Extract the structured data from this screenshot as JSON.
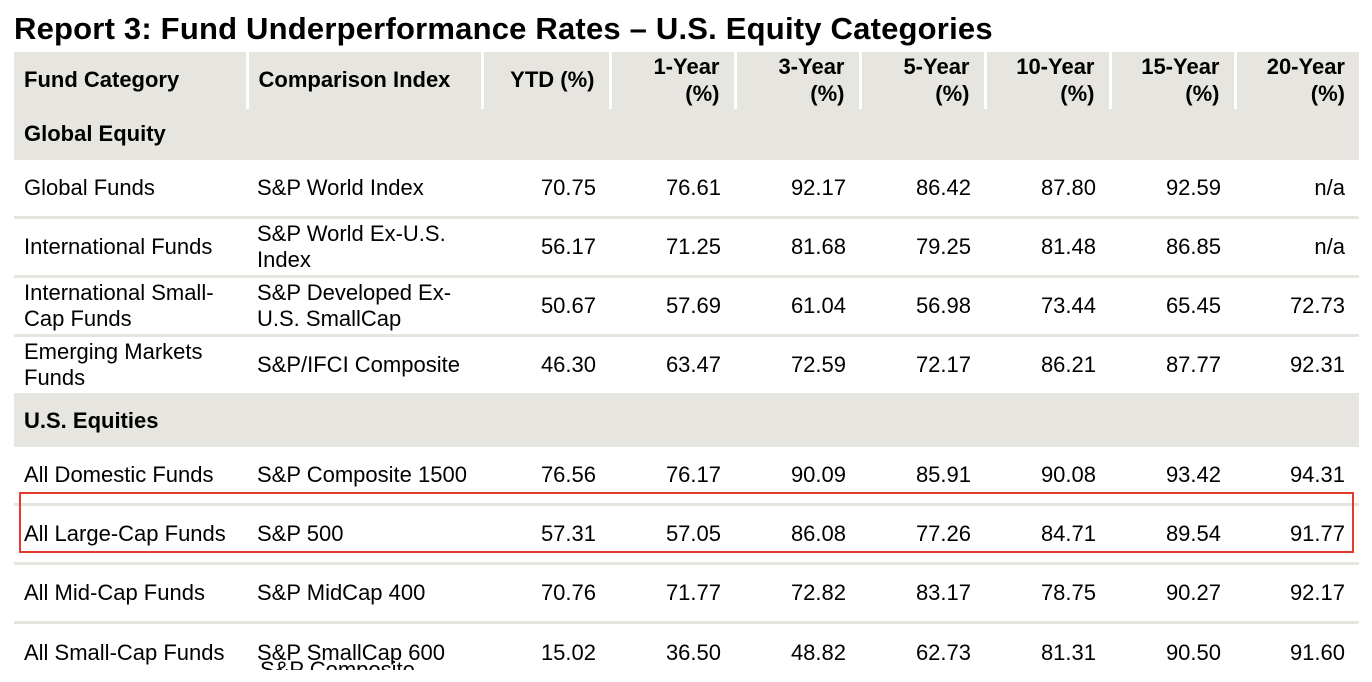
{
  "report": {
    "title": "Report 3: Fund Underperformance Rates – U.S. Equity Categories"
  },
  "table": {
    "columns": [
      "Fund Category",
      "Comparison Index",
      "YTD (%)",
      "1-Year (%)",
      "3-Year (%)",
      "5-Year (%)",
      "10-Year (%)",
      "15-Year (%)",
      "20-Year (%)"
    ],
    "sections": [
      {
        "name": "Global Equity",
        "rows": [
          [
            "Global Funds",
            "S&P World Index",
            "70.75",
            "76.61",
            "92.17",
            "86.42",
            "87.80",
            "92.59",
            "n/a"
          ],
          [
            "International Funds",
            "S&P World Ex-U.S. Index",
            "56.17",
            "71.25",
            "81.68",
            "79.25",
            "81.48",
            "86.85",
            "n/a"
          ],
          [
            "International Small-Cap Funds",
            "S&P Developed Ex-U.S. SmallCap",
            "50.67",
            "57.69",
            "61.04",
            "56.98",
            "73.44",
            "65.45",
            "72.73"
          ],
          [
            "Emerging Markets Funds",
            "S&P/IFCI Composite",
            "46.30",
            "63.47",
            "72.59",
            "72.17",
            "86.21",
            "87.77",
            "92.31"
          ]
        ]
      },
      {
        "name": "U.S. Equities",
        "rows": [
          [
            "All Domestic Funds",
            "S&P Composite 1500",
            "76.56",
            "76.17",
            "90.09",
            "85.91",
            "90.08",
            "93.42",
            "94.31"
          ],
          [
            "All Large-Cap Funds",
            "S&P 500",
            "57.31",
            "57.05",
            "86.08",
            "77.26",
            "84.71",
            "89.54",
            "91.77"
          ],
          [
            "All Mid-Cap Funds",
            "S&P MidCap 400",
            "70.76",
            "71.77",
            "72.82",
            "83.17",
            "78.75",
            "90.27",
            "92.17"
          ],
          [
            "All Small-Cap Funds",
            "S&P SmallCap 600",
            "15.02",
            "36.50",
            "48.82",
            "62.73",
            "81.31",
            "90.50",
            "91.60"
          ]
        ]
      }
    ],
    "partial_next_row_index": "S&P Composite"
  },
  "highlight": {
    "row_label": "All Large-Cap Funds",
    "color": "#e33b2b"
  },
  "colors": {
    "header_bg": "#e7e5df",
    "row_divider": "#e7e5df"
  }
}
